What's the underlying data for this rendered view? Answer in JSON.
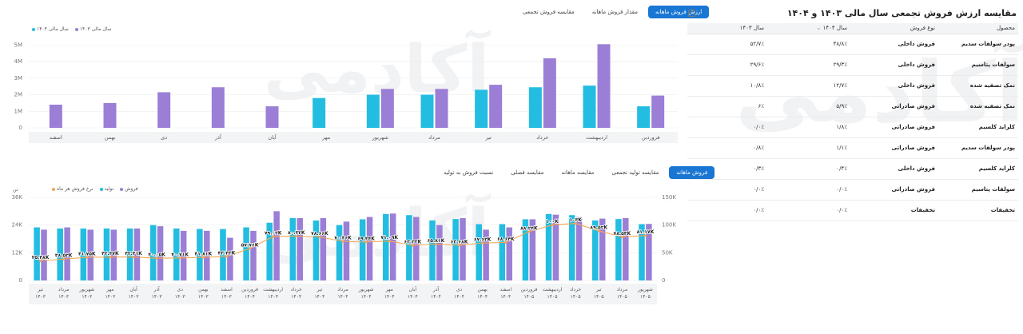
{
  "colors": {
    "purple": "#9b7fd6",
    "cyan": "#22bde0",
    "orange": "#f4a755",
    "blue": "#1976d2"
  },
  "watermark": "آکادمی",
  "top_chart": {
    "tabs": [
      {
        "label": "ارزش فروش ماهانه",
        "active": true
      },
      {
        "label": "مقدار فروش ماهانه",
        "active": false
      },
      {
        "label": "مقایسه فروش تجمعی",
        "active": false
      }
    ],
    "legend": [
      {
        "label": "سال مالی ۱۴۰۳",
        "color": "#9b7fd6"
      },
      {
        "label": "سال مالی ۱۴۰۴",
        "color": "#22bde0"
      }
    ]
  },
  "bottom_chart": {
    "tabs": [
      {
        "label": "فروش ماهانه",
        "active": true
      },
      {
        "label": "مقایسه تولید تجمعی",
        "active": false
      },
      {
        "label": "مقایسه ماهانه",
        "active": false
      },
      {
        "label": "مقایسه فصلی",
        "active": false
      },
      {
        "label": "نسبت فروش به تولید",
        "active": false
      }
    ],
    "legend": [
      {
        "label": "فروش",
        "color": "#9b7fd6"
      },
      {
        "label": "تولید",
        "color": "#22bde0"
      },
      {
        "label": "نرخ فروش هر ماه",
        "color": "#f4a755"
      }
    ],
    "left_axis_unit": "تن"
  },
  "right_panel": {
    "title": "مقایسه ارزش فروش تجمعی سال مالی ۱۴۰۳ و ۱۴۰۴",
    "columns": [
      "محصول",
      "نوع فروش",
      "سال ۱۴۰۴",
      "سال ۱۴۰۳"
    ],
    "rows": [
      [
        "پودر سولفات سدیم",
        "فروش داخلی",
        "۴۸/۸٪",
        "۵۲/۷٪"
      ],
      [
        "سولفات پتاسیم",
        "فروش داخلی",
        "۲۹/۳٪",
        "۲۹/۶٪"
      ],
      [
        "نمک تصفیه شده",
        "فروش داخلی",
        "۱۲/۷٪",
        "۱۰/۸٪"
      ],
      [
        "نمک تصفیه شده",
        "فروش صادراتی",
        "۵/۹٪",
        "۶٪"
      ],
      [
        "کلراید کلسیم",
        "فروش صادراتی",
        "۱/۸٪",
        "۰/۰٪"
      ],
      [
        "پودر سولفات سدیم",
        "فروش صادراتی",
        "۱/۱٪",
        "۰/۸٪"
      ],
      [
        "کلراید کلسیم",
        "فروش داخلی",
        "۰/۴٪",
        "۰/۳٪"
      ],
      [
        "سولفات پتاسیم",
        "فروش صادراتی",
        "۰/۰٪",
        "۰/۰٪"
      ],
      [
        "تخفیفات",
        "تخفیفات",
        "۰/۰٪",
        "۰/۰٪"
      ]
    ]
  },
  "chart_data": [
    {
      "type": "bar",
      "title": "",
      "categories": [
        "فروردین",
        "اردیبهشت",
        "خرداد",
        "تیر",
        "مرداد",
        "شهریور",
        "مهر",
        "آبان",
        "آذر",
        "دی",
        "بهمن",
        "اسفند"
      ],
      "series": [
        {
          "name": "سال مالی ۱۴۰۴",
          "values": [
            1.3,
            2.55,
            2.45,
            2.3,
            2.0,
            2.0,
            1.8,
            null,
            null,
            null,
            null,
            null
          ]
        },
        {
          "name": "سال مالی ۱۴۰۳",
          "values": [
            1.95,
            5.05,
            4.2,
            2.6,
            2.35,
            2.35,
            null,
            1.3,
            2.45,
            2.15,
            1.5,
            1.4
          ]
        }
      ],
      "yticks": [
        "0",
        "1M",
        "2M",
        "3M",
        "4M",
        "5M"
      ],
      "ylim": [
        0,
        5.5
      ],
      "grid": true,
      "legend_position": "top-left"
    },
    {
      "type": "bar",
      "title": "",
      "categories": [
        "تیر ۱۴۰۳",
        "مرداد ۱۴۰۳",
        "شهریور ۱۴۰۳",
        "مهر ۱۴۰۳",
        "آبان ۱۴۰۳",
        "آذر ۱۴۰۳",
        "دی ۱۴۰۳",
        "بهمن ۱۴۰۳",
        "اسفند ۱۴۰۳",
        "فروردین ۱۴۰۴",
        "اردیبهشت ۱۴۰۴",
        "خرداد ۱۴۰۴",
        "تیر ۱۴۰۴",
        "مرداد ۱۴۰۴",
        "شهریور ۱۴۰۴",
        "مهر ۱۴۰۴",
        "آبان ۱۴۰۴",
        "آذر ۱۴۰۴",
        "دی ۱۴۰۴",
        "بهمن ۱۴۰۴",
        "اسفند ۱۴۰۴",
        "فروردین ۱۴۰۵",
        "اردیبهشت ۱۴۰۵",
        "خرداد ۱۴۰۵",
        "تیر ۱۴۰۵",
        "مرداد ۱۴۰۵",
        "شهریور ۱۴۰۵"
      ],
      "series": [
        {
          "name": "تولید",
          "values": [
            23,
            22.5,
            22.5,
            22.5,
            22.5,
            24,
            22.5,
            22.3,
            22.3,
            23,
            25,
            27,
            26,
            24,
            26.5,
            28.8,
            28.3,
            26,
            26.6,
            24.4,
            24.4,
            26.5,
            28.8,
            28.3,
            26,
            26.6,
            24.4
          ]
        },
        {
          "name": "فروش",
          "values": [
            22,
            23,
            22,
            22,
            22.5,
            23.5,
            21.5,
            21.5,
            18.5,
            21.5,
            30,
            27,
            27,
            25.5,
            27.5,
            29,
            27.5,
            24,
            27,
            22,
            23,
            26.5,
            28.5,
            27.5,
            26.8,
            27,
            24.5
          ]
        },
        {
          "name": "نرخ فروش هر ماه",
          "values": [
            35.5,
            38.6,
            41.8,
            42.3,
            42.4,
            40.1,
            40.7,
            41.8,
            43.4,
            57.7,
            79,
            80.3,
            78.6,
            70.5,
            69.4,
            71.1,
            63.3,
            65.8,
            63.6,
            67.6,
            68.6,
            88.2,
            100.1,
            103,
            89.5,
            78.5,
            81.2
          ]
        }
      ],
      "data_labels": [
        "۳۵.۴۸K",
        "۳۸.۵۳K",
        "۴۱.۷۵K",
        "۴۲.۳۷K",
        "۴۲.۴۱K",
        "۴۰.۰۵K",
        "۴۰.۷۱K",
        "۴۱.۸۱K",
        "۴۳.۴۳K",
        "۵۷.۷۶K",
        "۷۹.۰۳K",
        "۸۰.۳۲K",
        "۷۸.۶۶K",
        "۷۰.۴۶K",
        "۶۹.۴۴K",
        "۷۱.۰۹K",
        "۶۳.۳۳K",
        "۶۵.۸۱K",
        "۶۳.۶۸K",
        "۶۷.۶۳K",
        "۶۸.۶۴K",
        "۸۸.۲۴K",
        "۱۰۰K",
        "۱۰۳K",
        "۸۹.۵۲K",
        "۷۸.۵۴K",
        "۸۱.۱۷K"
      ],
      "yticks_left": [
        "0",
        "12K",
        "24K",
        "36K"
      ],
      "ylim_left": [
        0,
        36
      ],
      "yticks_right": [
        "0",
        "50K",
        "100K",
        "150K"
      ],
      "ylim_right": [
        0,
        150
      ],
      "grid": true
    }
  ]
}
